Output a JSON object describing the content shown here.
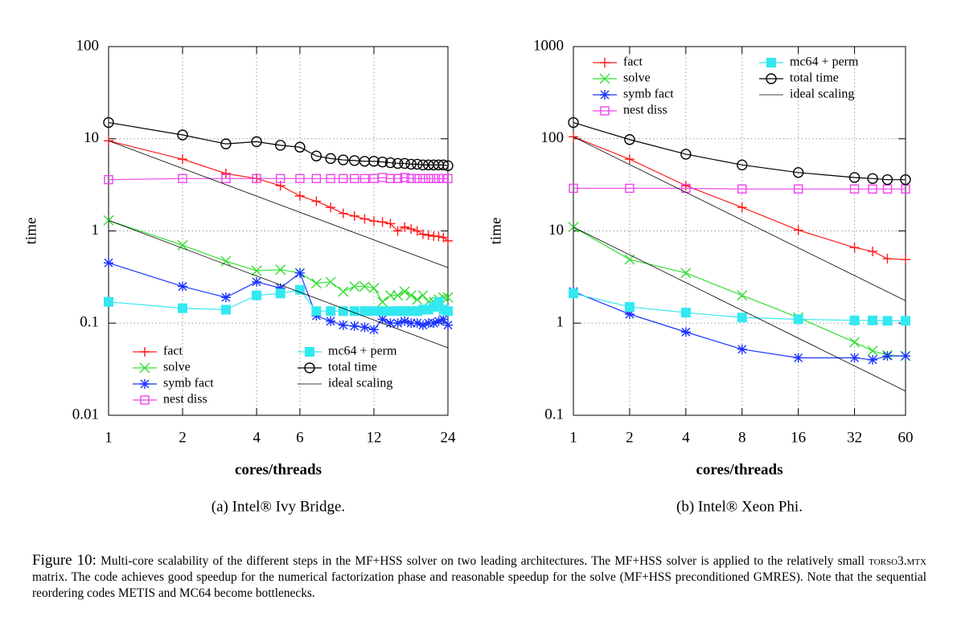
{
  "chart_data": [
    {
      "type": "line",
      "xlabel": "cores/threads",
      "ylabel": "time",
      "caption": "(a) Intel® Ivy Bridge.",
      "xscale": "log",
      "yscale": "log",
      "grid": true,
      "legend": "lower left",
      "xlim": [
        1,
        24
      ],
      "ylim": [
        0.01,
        100
      ],
      "xticks": [
        1,
        2,
        4,
        6,
        12,
        24
      ],
      "yticks": [
        0.01,
        0.1,
        1,
        10,
        100
      ],
      "x": [
        1,
        2,
        3,
        4,
        5,
        6,
        7,
        8,
        9,
        10,
        11,
        12,
        13,
        14,
        15,
        16,
        17,
        18,
        19,
        20,
        21,
        22,
        23,
        24
      ],
      "series": [
        {
          "name": "fact",
          "color": "#ff1a1a",
          "marker": "plus",
          "values": [
            9.5,
            6,
            4.2,
            3.7,
            3.1,
            2.4,
            2.1,
            1.8,
            1.55,
            1.45,
            1.35,
            1.28,
            1.25,
            1.2,
            1.0,
            1.1,
            1.05,
            1.0,
            0.92,
            0.9,
            0.88,
            0.87,
            0.85,
            0.78
          ]
        },
        {
          "name": "solve",
          "color": "#33dd33",
          "marker": "x",
          "values": [
            1.3,
            0.7,
            0.47,
            0.37,
            0.38,
            0.35,
            0.27,
            0.28,
            0.22,
            0.25,
            0.25,
            0.24,
            0.17,
            0.2,
            0.2,
            0.22,
            0.2,
            0.18,
            0.2,
            0.17,
            0.17,
            0.18,
            0.19,
            0.19
          ]
        },
        {
          "name": "symb fact",
          "color": "#1a33ff",
          "marker": "asterisk",
          "values": [
            0.45,
            0.25,
            0.19,
            0.28,
            0.24,
            0.35,
            0.12,
            0.105,
            0.095,
            0.093,
            0.09,
            0.085,
            0.11,
            0.1,
            0.1,
            0.105,
            0.1,
            0.1,
            0.095,
            0.1,
            0.1,
            0.105,
            0.11,
            0.095
          ]
        },
        {
          "name": "nest diss",
          "color": "#ee44ee",
          "marker": "square",
          "values": [
            3.6,
            3.7,
            3.7,
            3.7,
            3.7,
            3.7,
            3.7,
            3.7,
            3.7,
            3.7,
            3.7,
            3.7,
            3.8,
            3.7,
            3.7,
            3.8,
            3.7,
            3.7,
            3.7,
            3.7,
            3.7,
            3.7,
            3.7,
            3.7
          ]
        },
        {
          "name": "mc64 + perm",
          "color": "#33e8f0",
          "marker": "filled-square",
          "values": [
            0.17,
            0.145,
            0.14,
            0.2,
            0.21,
            0.23,
            0.135,
            0.135,
            0.135,
            0.135,
            0.135,
            0.135,
            0.135,
            0.135,
            0.135,
            0.135,
            0.135,
            0.135,
            0.14,
            0.14,
            0.15,
            0.17,
            0.14,
            0.135
          ]
        },
        {
          "name": "total time",
          "color": "#000000",
          "marker": "circle",
          "values": [
            15,
            11,
            8.8,
            9.3,
            8.5,
            8.1,
            6.5,
            6.1,
            5.9,
            5.8,
            5.7,
            5.7,
            5.6,
            5.5,
            5.4,
            5.4,
            5.3,
            5.3,
            5.2,
            5.2,
            5.2,
            5.2,
            5.2,
            5.1
          ]
        },
        {
          "name": "ideal scaling",
          "color": "#000000",
          "marker": "none",
          "x": [
            1,
            24,
            null,
            1,
            24
          ],
          "values": [
            9.5,
            0.4,
            null,
            1.3,
            0.054
          ]
        }
      ]
    },
    {
      "type": "line",
      "xlabel": "cores/threads",
      "ylabel": "time",
      "caption": "(b) Intel® Xeon Phi.",
      "xscale": "log",
      "yscale": "log",
      "grid": true,
      "legend": "upper left",
      "xlim": [
        1,
        60
      ],
      "ylim": [
        0.1,
        1000
      ],
      "xticks": [
        1,
        2,
        4,
        8,
        16,
        32,
        60
      ],
      "yticks": [
        0.1,
        1,
        10,
        100,
        1000
      ],
      "x": [
        1,
        2,
        4,
        8,
        16,
        32,
        40,
        48,
        60
      ],
      "series": [
        {
          "name": "fact",
          "color": "#ff1a1a",
          "marker": "plus",
          "values": [
            105,
            60,
            31,
            18,
            10.2,
            6.6,
            6.0,
            5.0,
            4.9
          ]
        },
        {
          "name": "solve",
          "color": "#33dd33",
          "marker": "x",
          "values": [
            11,
            4.9,
            3.5,
            2.0,
            1.15,
            0.62,
            0.5,
            0.45,
            0.44
          ]
        },
        {
          "name": "symb fact",
          "color": "#1a33ff",
          "marker": "asterisk",
          "values": [
            2.2,
            1.25,
            0.8,
            0.52,
            0.42,
            0.42,
            0.4,
            0.44,
            0.44
          ]
        },
        {
          "name": "nest diss",
          "color": "#ee44ee",
          "marker": "square",
          "values": [
            29,
            29,
            29,
            28.5,
            28.5,
            28.5,
            28.5,
            28.5,
            28.5
          ]
        },
        {
          "name": "mc64 + perm",
          "color": "#33e8f0",
          "marker": "filled-square",
          "values": [
            2.1,
            1.5,
            1.3,
            1.15,
            1.1,
            1.07,
            1.07,
            1.06,
            1.06
          ]
        },
        {
          "name": "total time",
          "color": "#000000",
          "marker": "circle",
          "values": [
            150,
            98,
            68,
            52,
            43,
            38,
            37,
            36,
            36
          ]
        },
        {
          "name": "ideal scaling",
          "color": "#000000",
          "marker": "none",
          "x": [
            1,
            60,
            null,
            1,
            60
          ],
          "values": [
            105,
            1.75,
            null,
            11,
            0.183
          ]
        }
      ]
    }
  ],
  "figure_caption": {
    "label": "Figure 10:",
    "parts": [
      "Multi-core scalability of the different steps in the MF+HSS solver on two leading architectures. The MF+HSS solver is applied to the relatively small ",
      "torso3.mtx",
      " matrix. The code achieves good speedup for the numerical factorization phase and reasonable speedup for the solve (MF+HSS preconditioned GMRES). Note that the sequential reordering codes METIS and MC64 become bottlenecks."
    ]
  }
}
